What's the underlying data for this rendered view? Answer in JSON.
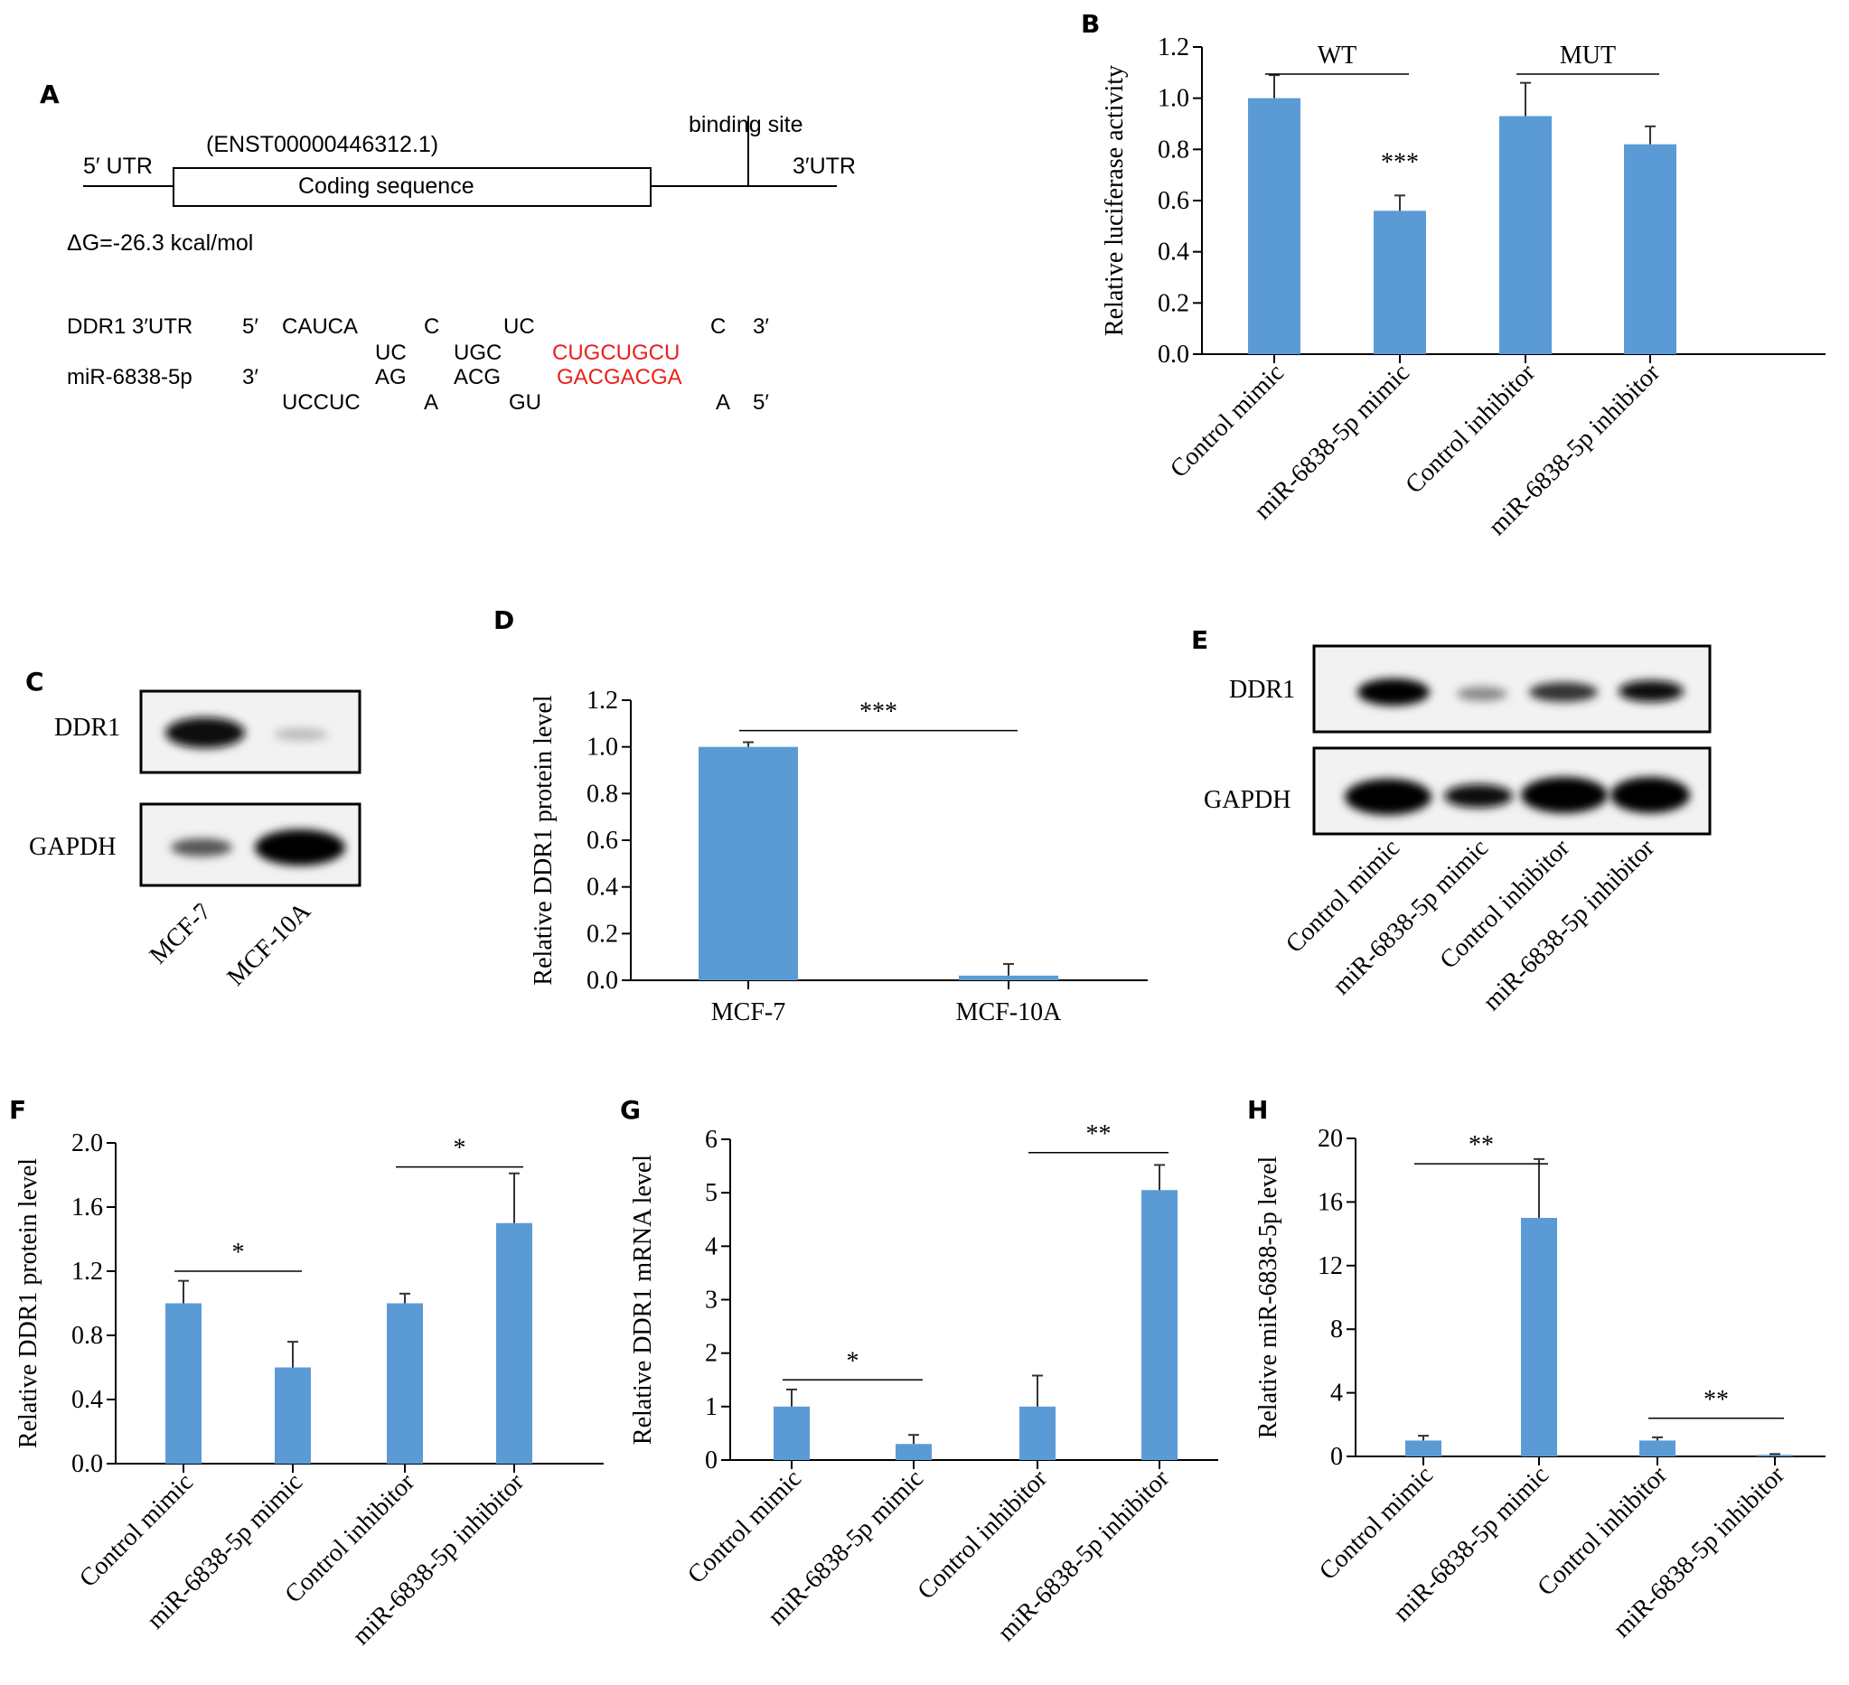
{
  "colors": {
    "bar": "#5b9bd5",
    "highlight": "#e8211d",
    "blot_bg": "#f4f4f4"
  },
  "panelA": {
    "letter": "A",
    "utr5": "5′ UTR",
    "transcript": "(ENST00000446312.1)",
    "cds": "Coding sequence",
    "binding": "binding site",
    "utr3": "3′UTR",
    "dg": "ΔG=-26.3 kcal/mol",
    "ddr1_label": "DDR1 3′UTR",
    "mir_label": "miR-6838-5p",
    "p5": "5′",
    "p3": "3′",
    "top_unpaired": [
      "CAUCA",
      "C",
      "UC",
      "C"
    ],
    "top_paired": [
      "UC",
      "UGC",
      "CUGCUGCU"
    ],
    "bot_paired": [
      "AG",
      "ACG",
      "GACGACGA"
    ],
    "bot_unpaired": [
      "UCCUC",
      "A",
      "GU",
      "A"
    ],
    "end3": "3′",
    "end5": "5′"
  },
  "panelC": {
    "letter": "C",
    "rows": [
      "DDR1",
      "GAPDH"
    ],
    "lanes": [
      "MCF-7",
      "MCF-10A"
    ]
  },
  "panelE": {
    "letter": "E",
    "rows": [
      "DDR1",
      "GAPDH"
    ],
    "lanes": [
      "Control mimic",
      "miR-6838-5p mimic",
      "Control inhibitor",
      "miR-6838-5p inhibitor"
    ]
  },
  "chart_data": [
    {
      "id": "B",
      "letter": "B",
      "type": "bar",
      "ylabel": "Relative luciferase activity",
      "ylim": [
        0,
        1.2
      ],
      "ticks": [
        "0.0",
        "0.2",
        "0.4",
        "0.6",
        "0.8",
        "1.0",
        "1.2"
      ],
      "categories": [
        "Control mimic",
        "miR-6838-5p mimic",
        "Control inhibitor",
        "miR-6838-5p inhibitor"
      ],
      "values": [
        1.0,
        0.56,
        0.93,
        0.82
      ],
      "errors": [
        0.09,
        0.06,
        0.13,
        0.07
      ],
      "annotations": [
        {
          "text": "***",
          "index": 1
        }
      ],
      "brackets": [
        {
          "text": "WT",
          "from": 0,
          "to": 1,
          "top": true
        },
        {
          "text": "MUT",
          "from": 2,
          "to": 3,
          "top": true
        }
      ]
    },
    {
      "id": "D",
      "letter": "D",
      "type": "bar",
      "ylabel": "Relative DDR1 protein level",
      "ylim": [
        0,
        1.2
      ],
      "ticks": [
        "0.0",
        "0.2",
        "0.4",
        "0.6",
        "0.8",
        "1.0",
        "1.2"
      ],
      "categories": [
        "MCF-7",
        "MCF-10A"
      ],
      "values": [
        1.0,
        0.02
      ],
      "errors": [
        0.02,
        0.05
      ],
      "brackets": [
        {
          "text": "***",
          "from": 0,
          "to": 1,
          "y": 1.07
        }
      ]
    },
    {
      "id": "F",
      "letter": "F",
      "type": "bar",
      "ylabel": "Relative DDR1 protein level",
      "ylim": [
        0,
        2.0
      ],
      "ticks": [
        "0.0",
        "0.4",
        "0.8",
        "1.2",
        "1.6",
        "2.0"
      ],
      "categories": [
        "Control mimic",
        "miR-6838-5p mimic",
        "Control inhibitor",
        "miR-6838-5p inhibitor"
      ],
      "values": [
        1.0,
        0.6,
        1.0,
        1.5
      ],
      "errors": [
        0.14,
        0.16,
        0.06,
        0.31
      ],
      "brackets": [
        {
          "text": "*",
          "from": 0,
          "to": 1,
          "y": 1.2
        },
        {
          "text": "*",
          "from": 2,
          "to": 3,
          "y": 1.85
        }
      ]
    },
    {
      "id": "G",
      "letter": "G",
      "type": "bar",
      "ylabel": "Relative DDR1 mRNA level",
      "ylim": [
        0,
        6
      ],
      "ticks": [
        "0",
        "1",
        "2",
        "3",
        "4",
        "5",
        "6"
      ],
      "categories": [
        "Control mimic",
        "miR-6838-5p mimic",
        "Control inhibitor",
        "miR-6838-5p inhibitor"
      ],
      "values": [
        1.0,
        0.3,
        1.0,
        5.05
      ],
      "errors": [
        0.32,
        0.17,
        0.58,
        0.47
      ],
      "brackets": [
        {
          "text": "*",
          "from": 0,
          "to": 1,
          "y": 1.5
        },
        {
          "text": "**",
          "from": 2,
          "to": 3,
          "y": 5.75
        }
      ]
    },
    {
      "id": "H",
      "letter": "H",
      "type": "bar",
      "ylabel": "Relative miR-6838-5p level",
      "ylim": [
        0,
        20
      ],
      "ticks": [
        "0",
        "4",
        "8",
        "12",
        "16",
        "20"
      ],
      "categories": [
        "Control mimic",
        "miR-6838-5p mimic",
        "Control inhibitor",
        "miR-6838-5p inhibitor"
      ],
      "values": [
        1.0,
        15.0,
        1.0,
        0.1
      ],
      "errors": [
        0.3,
        3.7,
        0.2,
        0.05
      ],
      "brackets": [
        {
          "text": "**",
          "from": 0,
          "to": 1,
          "y": 18.4
        },
        {
          "text": "**",
          "from": 2,
          "to": 3,
          "y": 2.4
        }
      ]
    }
  ]
}
